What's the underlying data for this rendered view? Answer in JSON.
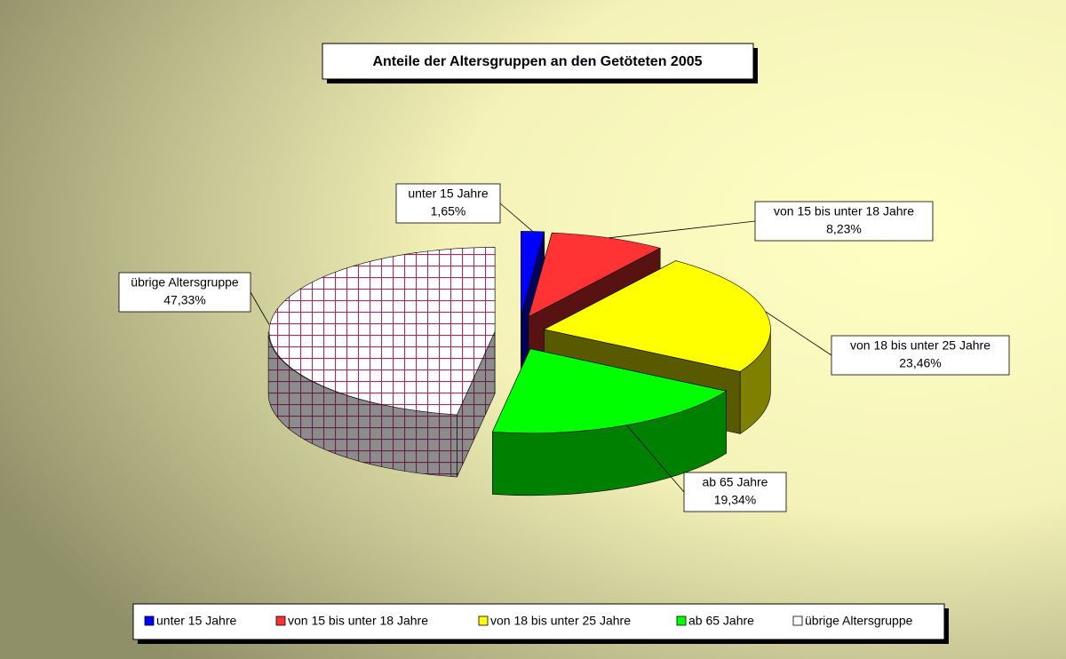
{
  "chart_data": {
    "type": "pie",
    "title": "Anteile der Altersgruppen an den Getöteten 2005",
    "categories": [
      "unter 15 Jahre",
      "von 15 bis unter 18 Jahre",
      "von 18 bis unter 25 Jahre",
      "ab 65 Jahre",
      "übrige Altersgruppe"
    ],
    "values": [
      1.65,
      8.23,
      23.46,
      19.34,
      47.33
    ],
    "value_labels": [
      "1,65%",
      "8,23%",
      "23,46%",
      "19,34%",
      "47,33%"
    ],
    "colors": [
      "#0000ff",
      "#ff3333",
      "#ffff00",
      "#00ff00",
      "#ffffff"
    ],
    "hatched": [
      false,
      false,
      false,
      false,
      true
    ],
    "legend": "bottom"
  }
}
